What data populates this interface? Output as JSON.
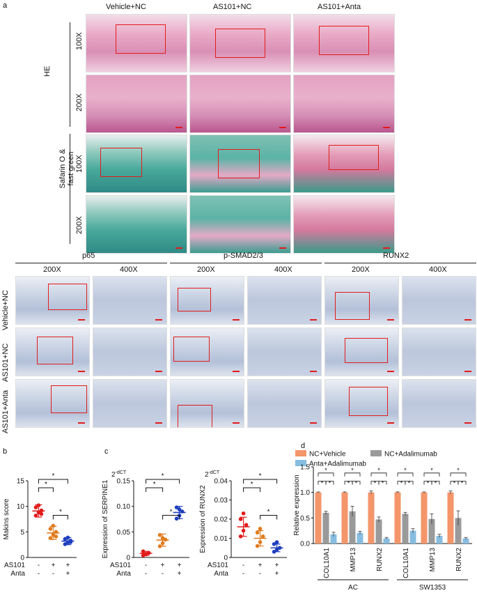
{
  "panel_a": {
    "letter": "a",
    "columns": [
      "Vehicle+NC",
      "AS101+NC",
      "AS101+Anta"
    ],
    "stains": [
      {
        "label": "HE",
        "mags": [
          "100X",
          "200X"
        ]
      },
      {
        "label_line1": "Safarin O &",
        "label_line2": "fast green",
        "mags": [
          "100X",
          "200X"
        ]
      }
    ]
  },
  "ihc": {
    "markers": [
      "p65",
      "p-SMAD2/3",
      "RUNX2"
    ],
    "mags": [
      "200X",
      "400X"
    ],
    "rows": [
      "Vehicle+NC",
      "AS101+NC",
      "AS101+Anta"
    ]
  },
  "panel_b": {
    "letter": "b"
  },
  "panel_c": {
    "letter": "c"
  },
  "panel_d": {
    "letter": "d"
  },
  "chart_data": [
    {
      "type": "scatter",
      "panel": "b",
      "ylabel": "Makins score",
      "yticks": [
        0,
        5,
        10,
        15
      ],
      "ylim": [
        0,
        15
      ],
      "groups": [
        {
          "color": "#e21b1b",
          "mean": 9.1,
          "sd": 1.2,
          "points": [
            8.2,
            8.8,
            9.2,
            9.8,
            10.2,
            8.5
          ]
        },
        {
          "color": "#e07b1e",
          "mean": 4.8,
          "sd": 1.3,
          "points": [
            3.8,
            4.4,
            5.0,
            5.6,
            6.2,
            4.1
          ]
        },
        {
          "color": "#1f3fbf",
          "mean": 3.2,
          "sd": 0.7,
          "points": [
            2.6,
            2.9,
            3.3,
            3.6,
            3.9,
            3.0
          ]
        }
      ],
      "row_labels": [
        "AS101",
        "Anta"
      ],
      "row_values": [
        [
          "-",
          "+",
          "+"
        ],
        [
          "-",
          "-",
          "+"
        ]
      ],
      "sig": [
        "*",
        "*",
        "*"
      ]
    },
    {
      "type": "scatter",
      "panel": "c-left",
      "title": "2-dCT",
      "ylabel": "Expression of SERPINE1",
      "yticks": [
        "0",
        "0.05",
        "0.10",
        "0.15"
      ],
      "ylim": [
        0,
        0.15
      ],
      "groups": [
        {
          "color": "#e21b1b",
          "mean": 0.008,
          "sd": 0.004,
          "points": [
            0.004,
            0.006,
            0.009,
            0.012,
            0.007
          ]
        },
        {
          "color": "#e07b1e",
          "mean": 0.034,
          "sd": 0.012,
          "points": [
            0.022,
            0.028,
            0.035,
            0.044,
            0.038
          ]
        },
        {
          "color": "#1f3fbf",
          "mean": 0.088,
          "sd": 0.012,
          "points": [
            0.076,
            0.082,
            0.09,
            0.098,
            0.094
          ]
        }
      ],
      "row_labels": [
        "AS101",
        "Anta"
      ],
      "row_values": [
        [
          "-",
          "+",
          "+"
        ],
        [
          "-",
          "-",
          "+"
        ]
      ],
      "sig": [
        "*",
        "*",
        "*"
      ]
    },
    {
      "type": "scatter",
      "panel": "c-right",
      "title": "2-dCT",
      "ylabel": "Expression of RUNX2",
      "yticks": [
        "0",
        "0.01",
        "0.02",
        "0.03",
        "0.04"
      ],
      "ylim": [
        0,
        0.04
      ],
      "groups": [
        {
          "color": "#e21b1b",
          "mean": 0.016,
          "sd": 0.005,
          "points": [
            0.011,
            0.014,
            0.017,
            0.02,
            0.023
          ]
        },
        {
          "color": "#e07b1e",
          "mean": 0.01,
          "sd": 0.004,
          "points": [
            0.006,
            0.008,
            0.011,
            0.013,
            0.015
          ]
        },
        {
          "color": "#1f3fbf",
          "mean": 0.005,
          "sd": 0.002,
          "points": [
            0.003,
            0.004,
            0.005,
            0.007,
            0.008
          ]
        }
      ],
      "row_labels": [
        "AS101",
        "Anta"
      ],
      "row_values": [
        [
          "-",
          "+",
          "+"
        ],
        [
          "-",
          "-",
          "+"
        ]
      ],
      "sig": [
        "*",
        "*",
        "*"
      ]
    },
    {
      "type": "bar",
      "panel": "d",
      "ylabel": "Relative expression",
      "yticks": [
        "0.0",
        "0.5",
        "1.0",
        "1.5"
      ],
      "ylim": [
        0,
        1.5
      ],
      "categories": [
        "COL10A1",
        "MMP13",
        "RUNX2",
        "COL10A1",
        "MMP13",
        "RUNX2"
      ],
      "groups": [
        "AC",
        "SW1353"
      ],
      "series": [
        {
          "name": "NC+Vehicle",
          "color": "#f4956a",
          "values": [
            1.0,
            1.0,
            1.0,
            1.0,
            1.0,
            1.0
          ],
          "err": [
            0.01,
            0.01,
            0.03,
            0.01,
            0.01,
            0.03
          ]
        },
        {
          "name": "NC+Adalimumab",
          "color": "#9a9a9a",
          "values": [
            0.6,
            0.63,
            0.47,
            0.58,
            0.48,
            0.5
          ],
          "err": [
            0.03,
            0.1,
            0.05,
            0.03,
            0.1,
            0.14
          ]
        },
        {
          "name": "Anta+Adalimumab",
          "color": "#87bde0",
          "values": [
            0.18,
            0.21,
            0.1,
            0.25,
            0.15,
            0.1
          ],
          "err": [
            0.04,
            0.03,
            0.02,
            0.04,
            0.03,
            0.02
          ]
        }
      ],
      "legend_position": "top",
      "sig": "*"
    }
  ]
}
